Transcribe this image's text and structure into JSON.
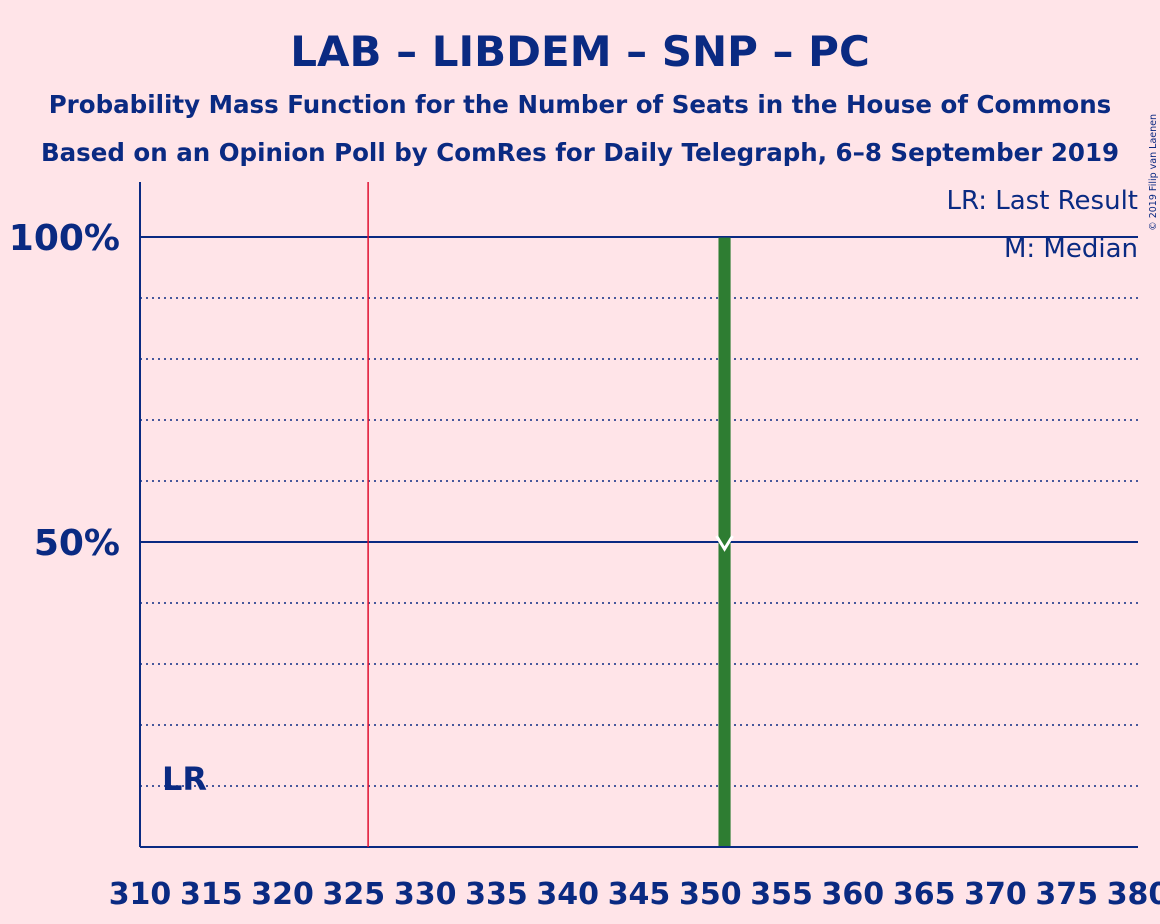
{
  "chart_data": {
    "type": "bar",
    "title": "LAB – LIBDEM – SNP – PC",
    "subtitle": "Probability Mass Function for the Number of Seats in the House of Commons",
    "subtitle2": "Based on an Opinion Poll by ComRes for Daily Telegraph, 6–8 September 2019",
    "copyright": "© 2019 Filip van Laenen",
    "xlim": [
      310,
      380
    ],
    "ylim": [
      0,
      100
    ],
    "x_ticks": [
      310,
      315,
      320,
      325,
      330,
      335,
      340,
      345,
      350,
      355,
      360,
      365,
      370,
      375,
      380
    ],
    "y_ticks": [
      {
        "value": 50,
        "label": "50%"
      },
      {
        "value": 100,
        "label": "100%"
      }
    ],
    "y_minor_gridlines": [
      10,
      20,
      30,
      40,
      60,
      70,
      80,
      90
    ],
    "majority_line": 326,
    "last_result": {
      "seat": 312,
      "label": "LR"
    },
    "median_seat": 351,
    "bars": [
      {
        "seat": 351,
        "value": 99.9,
        "color": "#2E7D32"
      }
    ],
    "legend": {
      "lr": "LR: Last Result",
      "median": "M: Median"
    },
    "colors": {
      "text": "#0A2A82",
      "background": "#FFE4E8",
      "majority": "#E01030",
      "bar": "#2E7D32",
      "median_marker": "#FFFFFF"
    }
  }
}
